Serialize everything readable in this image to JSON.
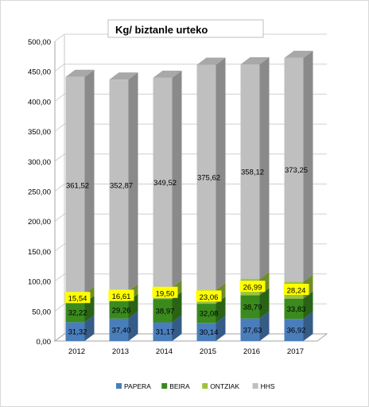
{
  "chart_data": {
    "type": "bar",
    "stacked": true,
    "title": "Kg/ biztanle urteko",
    "categories": [
      "2012",
      "2013",
      "2014",
      "2015",
      "2016",
      "2017"
    ],
    "series": [
      {
        "name": "PAPERA",
        "color": "#4a7ebb",
        "values": [
          31.32,
          37.4,
          31.17,
          30.14,
          37.63,
          36.92
        ],
        "labels": [
          "31,32",
          "37,40",
          "31,17",
          "30,14",
          "37,63",
          "36,92"
        ]
      },
      {
        "name": "BEIRA",
        "color": "#3a8a1e",
        "values": [
          32.22,
          29.26,
          38.97,
          32.08,
          38.79,
          33.83
        ],
        "labels": [
          "32,22",
          "29,26",
          "38,97",
          "32,08",
          "38,79",
          "33,83"
        ]
      },
      {
        "name": "ONTZIAK",
        "color": "#9cc33a",
        "values": [
          15.54,
          16.61,
          19.5,
          23.06,
          26.99,
          28.24
        ],
        "labels": [
          "15,54",
          "16,61",
          "19,50",
          "23,06",
          "26,99",
          "28,24"
        ]
      },
      {
        "name": "HHS",
        "color": "#bfbfbf",
        "values": [
          361.52,
          352.87,
          349.52,
          375.62,
          358.12,
          373.25
        ],
        "labels": [
          "361,52",
          "352,87",
          "349,52",
          "375,62",
          "358,12",
          "373,25"
        ]
      }
    ],
    "ylim": [
      0,
      500
    ],
    "yticks": [
      "0,00",
      "50,00",
      "100,00",
      "150,00",
      "200,00",
      "250,00",
      "300,00",
      "350,00",
      "400,00",
      "450,00",
      "500,00"
    ],
    "grid": true,
    "legend_position": "bottom"
  }
}
